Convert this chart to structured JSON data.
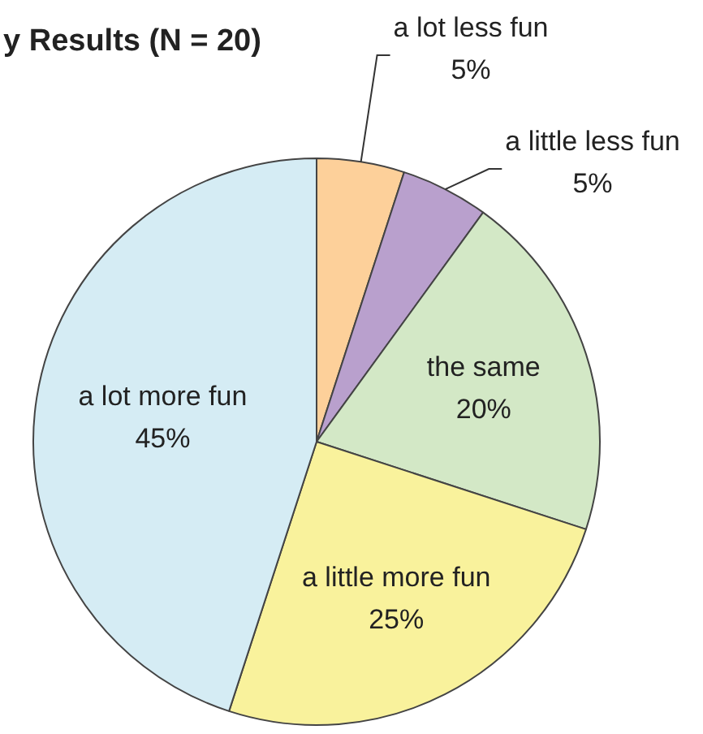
{
  "chart_data": {
    "type": "pie",
    "title": "y Results (N = 20)",
    "categories": [
      "a lot less fun",
      "a little less fun",
      "the same",
      "a little more fun",
      "a lot more fun"
    ],
    "values": [
      5,
      5,
      20,
      25,
      45
    ],
    "value_labels": [
      "5%",
      "5%",
      "20%",
      "25%",
      "45%"
    ],
    "colors": [
      "#fdd09a",
      "#b9a0cd",
      "#d3e8c6",
      "#f9f29c",
      "#d5ecf4"
    ],
    "legend": false
  }
}
